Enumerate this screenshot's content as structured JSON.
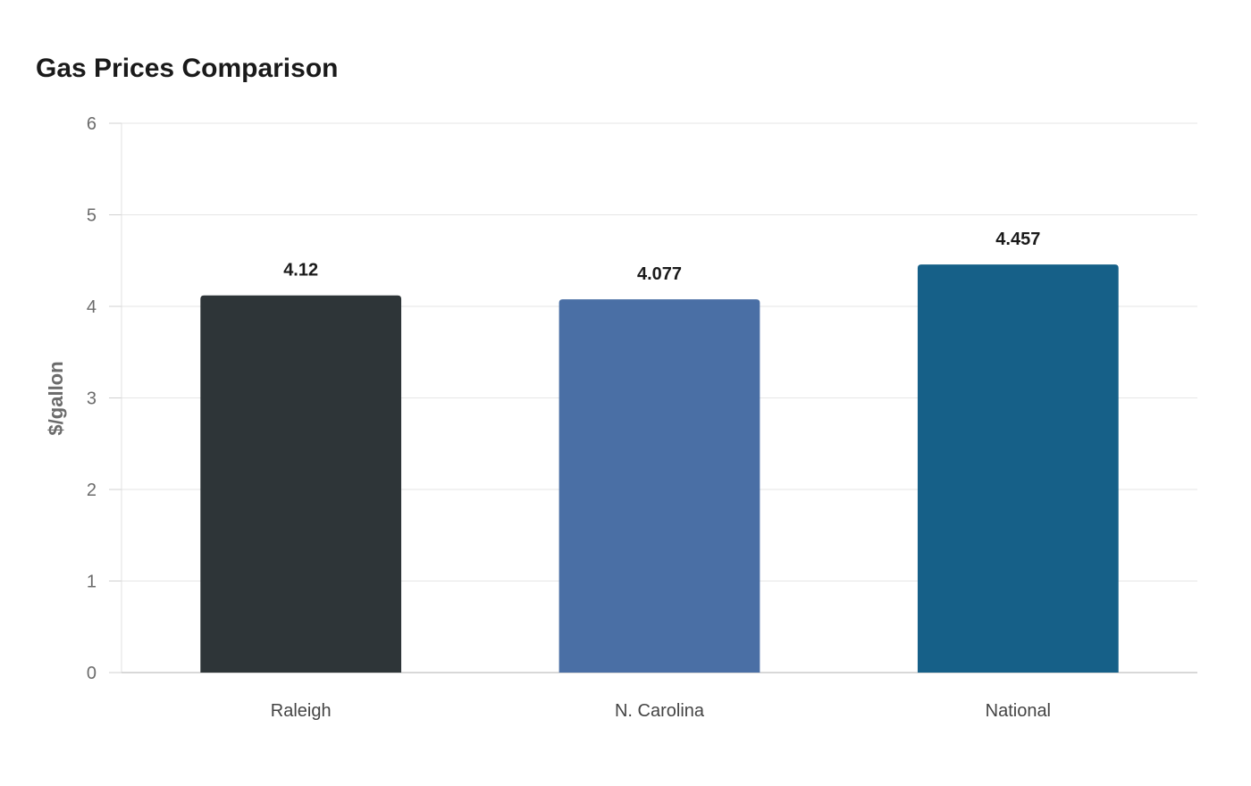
{
  "chart_data": {
    "type": "bar",
    "title": "Gas Prices Comparison",
    "xlabel": "",
    "ylabel": "$/gallon",
    "ylim": [
      0,
      6
    ],
    "yticks": [
      0,
      1,
      2,
      3,
      4,
      5,
      6
    ],
    "categories": [
      "Raleigh",
      "N. Carolina",
      "National"
    ],
    "values": [
      4.12,
      4.077,
      4.457
    ],
    "data_labels": [
      "4.12",
      "4.077",
      "4.457"
    ],
    "colors": [
      "#2e3538",
      "#4a6fa5",
      "#166088"
    ],
    "grid": true,
    "legend": "none"
  }
}
